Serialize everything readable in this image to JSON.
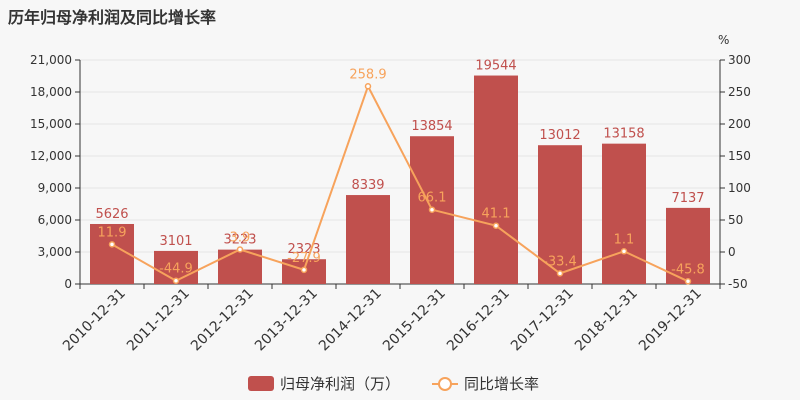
{
  "chart_data": {
    "type": "bar",
    "title": "历年归母净利润及同比增长率",
    "categories": [
      "2010-12-31",
      "2011-12-31",
      "2012-12-31",
      "2013-12-31",
      "2014-12-31",
      "2015-12-31",
      "2016-12-31",
      "2017-12-31",
      "2018-12-31",
      "2019-12-31"
    ],
    "series": [
      {
        "name": "归母净利润（万）",
        "type": "bar",
        "axis": "left",
        "color": "#c0504d",
        "values": [
          5626,
          3101,
          3223,
          2323,
          8339,
          13854,
          19544,
          13012,
          13158,
          7137
        ]
      },
      {
        "name": "同比增长率",
        "type": "line",
        "axis": "right",
        "color": "#f7a35c",
        "values": [
          11.9,
          -44.9,
          3.9,
          -27.9,
          258.9,
          66.1,
          41.1,
          -33.4,
          1.1,
          -45.8
        ]
      }
    ],
    "y_left": {
      "range": [
        0,
        21000
      ],
      "ticks": [
        "0",
        "3,000",
        "6,000",
        "9,000",
        "12,000",
        "15,000",
        "18,000",
        "21,000"
      ]
    },
    "y_right": {
      "unit": "%",
      "range": [
        -50,
        300
      ],
      "ticks": [
        "-50",
        "0",
        "50",
        "100",
        "150",
        "200",
        "250",
        "300"
      ]
    },
    "grid": true,
    "legend_position": "bottom-center"
  }
}
